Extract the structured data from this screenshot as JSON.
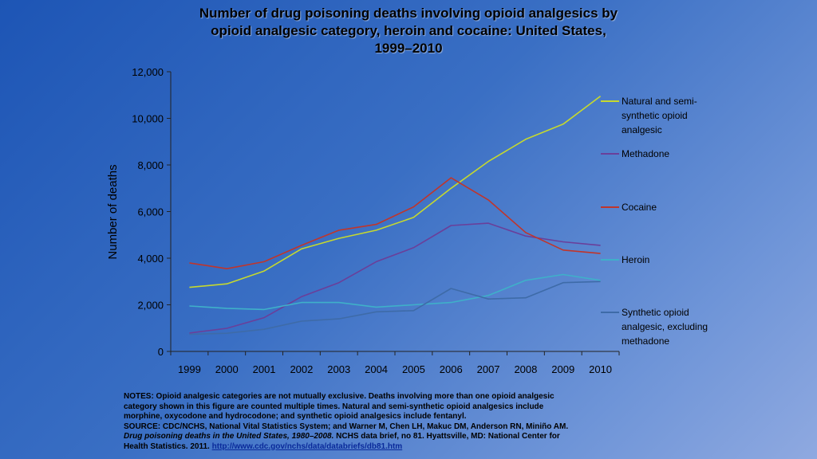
{
  "title_lines": [
    "Number of drug poisoning deaths involving opioid analgesics by",
    "opioid analgesic category, heroin and cocaine: United States,",
    "1999–2010"
  ],
  "notes": {
    "line1": "NOTES: Opioid analgesic categories are not mutually exclusive. Deaths involving more than one opioid analgesic",
    "line2": "category shown in this figure are counted multiple times. Natural and semi-synthetic opioid analgesics include",
    "line3": "morphine, oxycodone and hydrocodone; and synthetic opioid analgesics include fentanyl.",
    "line4": "SOURCE: CDC/NCHS, National Vital Statistics System; and Warner M, Chen LH, Makuc DM, Anderson RN, Miniño AM.",
    "line5_italic": "Drug poisoning deaths in the United States, 1980–2008.",
    "line5_rest": " NCHS data brief, no 81. Hyattsville, MD: National Center for",
    "line6_text": "Health Statistics. 2011. ",
    "line6_link": "http://www.cdc.gov/nchs/data/databriefs/db81.htm"
  },
  "chart_data": {
    "type": "line",
    "title": "Number of drug poisoning deaths involving opioid analgesics by opioid analgesic category, heroin and cocaine: United States, 1999–2010",
    "xlabel": "",
    "ylabel": "Number of deaths",
    "ylim": [
      0,
      12000
    ],
    "y_ticks": [
      0,
      2000,
      4000,
      6000,
      8000,
      10000,
      12000
    ],
    "y_tick_labels": [
      "0",
      "2,000",
      "4,000",
      "6,000",
      "8,000",
      "10,000",
      "12,000"
    ],
    "categories": [
      "1999",
      "2000",
      "2001",
      "2002",
      "2003",
      "2004",
      "2005",
      "2006",
      "2007",
      "2008",
      "2009",
      "2010"
    ],
    "grid": false,
    "legend_position": "right",
    "series": [
      {
        "name": "Natural and semi-synthetic opioid analgesic",
        "legend_lines": [
          "Natural and semi-",
          "synthetic opioid",
          "analgesic"
        ],
        "color": "#c6d92e",
        "values": [
          2750,
          2900,
          3450,
          4400,
          4850,
          5200,
          5750,
          7000,
          8150,
          9100,
          9750,
          10950
        ]
      },
      {
        "name": "Methadone",
        "legend_lines": [
          "Methadone"
        ],
        "color": "#6a3f9a",
        "values": [
          790,
          990,
          1450,
          2350,
          2950,
          3850,
          4450,
          5400,
          5500,
          4950,
          4700,
          4550
        ]
      },
      {
        "name": "Cocaine",
        "legend_lines": [
          "Cocaine"
        ],
        "color": "#c0352b",
        "values": [
          3800,
          3550,
          3850,
          4550,
          5200,
          5450,
          6200,
          7450,
          6500,
          5100,
          4350,
          4200
        ]
      },
      {
        "name": "Heroin",
        "legend_lines": [
          "Heroin"
        ],
        "color": "#3fb0c9",
        "values": [
          1950,
          1850,
          1800,
          2100,
          2100,
          1900,
          2000,
          2100,
          2400,
          3050,
          3300,
          3050
        ]
      },
      {
        "name": "Synthetic opioid analgesic, excluding methadone",
        "legend_lines": [
          "Synthetic opioid",
          "analgesic, excluding",
          "methadone"
        ],
        "color": "#3e6ba8",
        "values": [
          730,
          780,
          950,
          1300,
          1400,
          1700,
          1750,
          2700,
          2250,
          2300,
          2950,
          3000
        ]
      }
    ]
  }
}
